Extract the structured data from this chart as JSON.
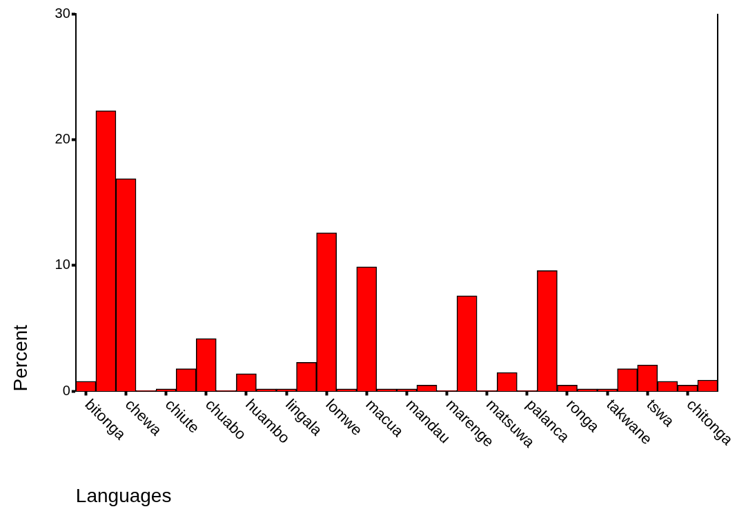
{
  "chart_data": {
    "type": "bar",
    "xlabel": "Languages",
    "ylabel": "Percent",
    "categories": [
      "bitonga",
      null,
      "chewa",
      null,
      "chiute",
      null,
      "chuabo",
      null,
      "huambo",
      null,
      "lingala",
      null,
      "lomwe",
      null,
      "macua",
      null,
      "mandau",
      null,
      "marenge",
      null,
      "matsuwa",
      null,
      "palanca",
      null,
      "ronga",
      null,
      "takwane",
      null,
      "tswa",
      null,
      "chitonga",
      null
    ],
    "values": [
      0.8,
      22.3,
      16.9,
      0.05,
      0.2,
      1.8,
      4.2,
      0.05,
      1.4,
      0.2,
      0.2,
      2.3,
      12.6,
      0.2,
      9.9,
      0.2,
      0.2,
      0.5,
      0.05,
      7.6,
      0.05,
      1.5,
      0.05,
      9.6,
      0.5,
      0.2,
      0.2,
      1.8,
      2.1,
      0.8,
      0.5,
      0.9
    ],
    "color": "#ff0000",
    "ylim": [
      0,
      30
    ],
    "yticks": [
      0,
      10,
      20,
      30
    ],
    "grid": false,
    "legend": false
  }
}
